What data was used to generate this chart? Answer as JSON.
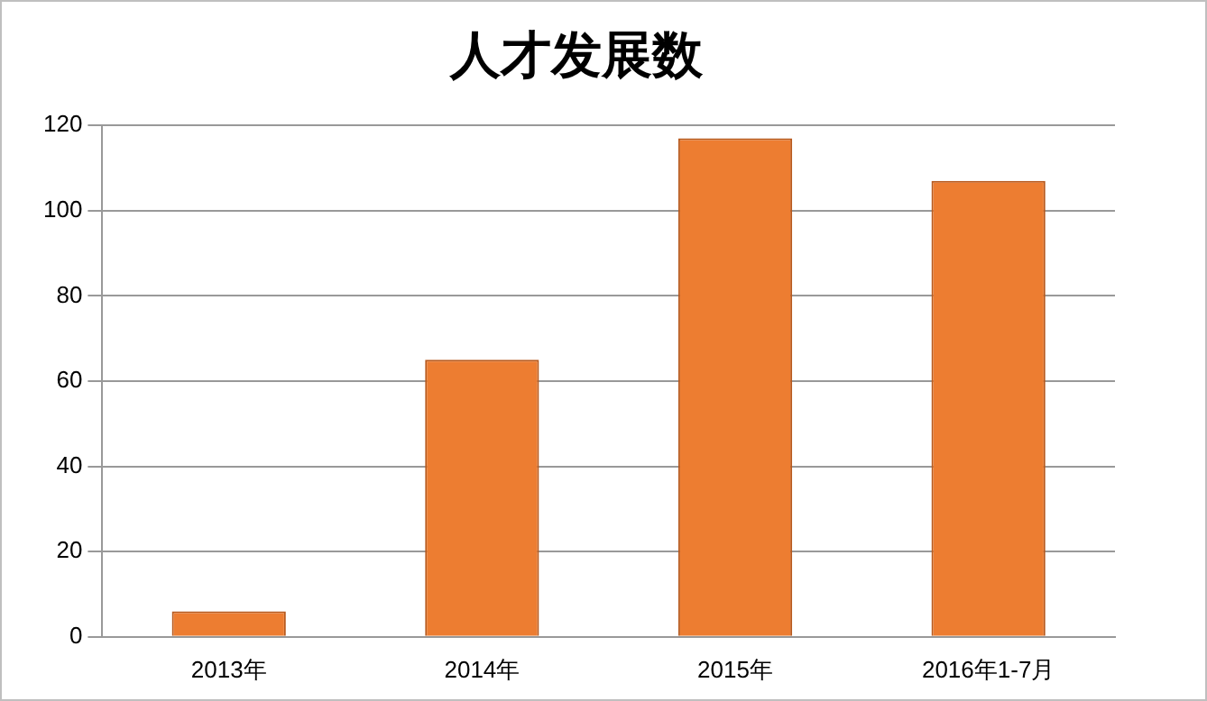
{
  "chart_data": {
    "type": "bar",
    "title": "人才发展数",
    "categories": [
      "2013年",
      "2014年",
      "2015年",
      "2016年1-7月"
    ],
    "values": [
      6,
      65,
      117,
      107
    ],
    "color": "#ed7d31",
    "ylim": [
      0,
      120
    ],
    "yticks": [
      0,
      20,
      40,
      60,
      80,
      100,
      120
    ],
    "grid": "y"
  }
}
